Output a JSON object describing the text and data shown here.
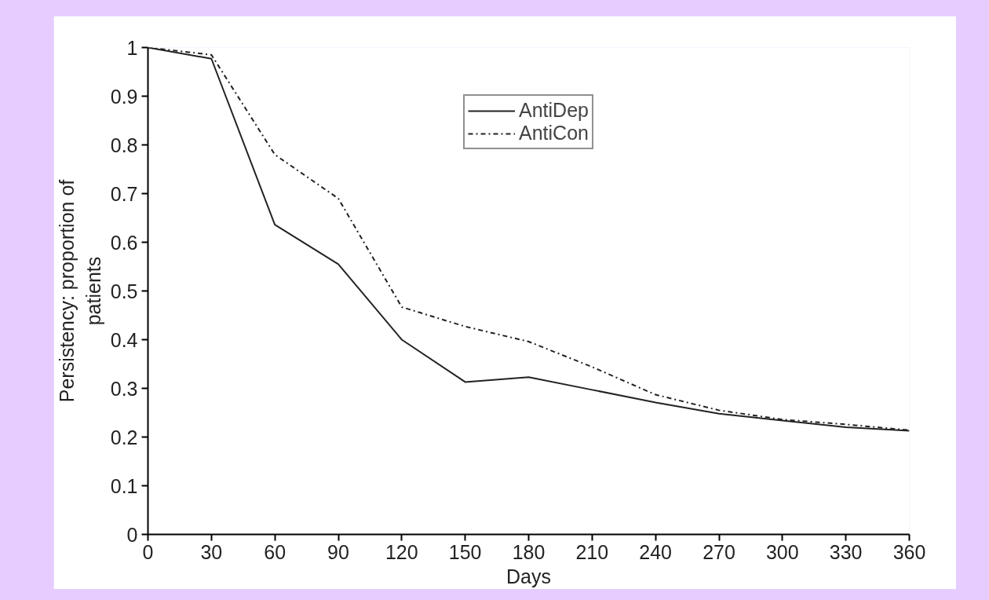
{
  "chart_data": {
    "type": "line",
    "xlabel": "Days",
    "ylabel": "Persistency: proportion of patients",
    "x": [
      0,
      30,
      60,
      90,
      120,
      150,
      180,
      210,
      240,
      270,
      300,
      330,
      360
    ],
    "series": [
      {
        "name": "AntiDep",
        "color": "#222222",
        "line_style": "solid",
        "values": [
          1.0,
          0.977,
          0.636,
          0.555,
          0.4,
          0.313,
          0.323,
          0.297,
          0.271,
          0.248,
          0.234,
          0.22,
          0.213
        ]
      },
      {
        "name": "AntiCon",
        "color": "#222222",
        "line_style": "dashdot",
        "values": [
          1.0,
          0.985,
          0.78,
          0.69,
          0.467,
          0.427,
          0.396,
          0.344,
          0.287,
          0.255,
          0.236,
          0.226,
          0.214
        ]
      }
    ],
    "xlim": [
      0,
      360
    ],
    "ylim": [
      0,
      1
    ],
    "xticks": [
      0,
      30,
      60,
      90,
      120,
      150,
      180,
      210,
      240,
      270,
      300,
      330,
      360
    ],
    "yticks": [
      0,
      0.1,
      0.2,
      0.3,
      0.4,
      0.5,
      0.6,
      0.7,
      0.8,
      0.9,
      1
    ],
    "grid": false,
    "legend": "top",
    "marker": "none"
  }
}
